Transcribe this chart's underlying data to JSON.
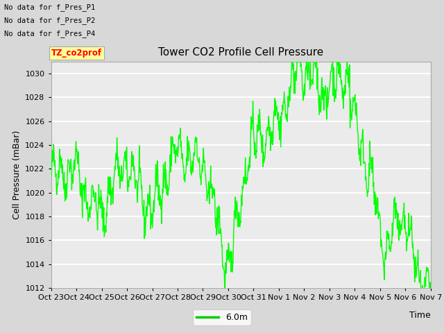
{
  "title": "Tower CO2 Profile Cell Pressure",
  "xlabel": "Time",
  "ylabel": "Cell Pressure (mBar)",
  "ylim": [
    1012,
    1031
  ],
  "yticks": [
    1012,
    1014,
    1016,
    1018,
    1020,
    1022,
    1024,
    1026,
    1028,
    1030
  ],
  "xtick_labels": [
    "Oct 23",
    "Oct 24",
    "Oct 25",
    "Oct 26",
    "Oct 27",
    "Oct 28",
    "Oct 29",
    "Oct 30",
    "Oct 31",
    "Nov 1",
    "Nov 2",
    "Nov 3",
    "Nov 4",
    "Nov 5",
    "Nov 6",
    "Nov 7"
  ],
  "line_color": "#00ff00",
  "line_width": 1.0,
  "legend_label": "6.0m",
  "legend_line_color": "#00cc00",
  "no_data_texts": [
    "No data for f_Pres_P1",
    "No data for f_Pres_P2",
    "No data for f_Pres_P4"
  ],
  "tz_label": "TZ_co2prof",
  "bg_color": "#d8d8d8",
  "plot_bg_color": "#ebebeb",
  "title_fontsize": 11,
  "axis_fontsize": 9,
  "tick_fontsize": 8
}
